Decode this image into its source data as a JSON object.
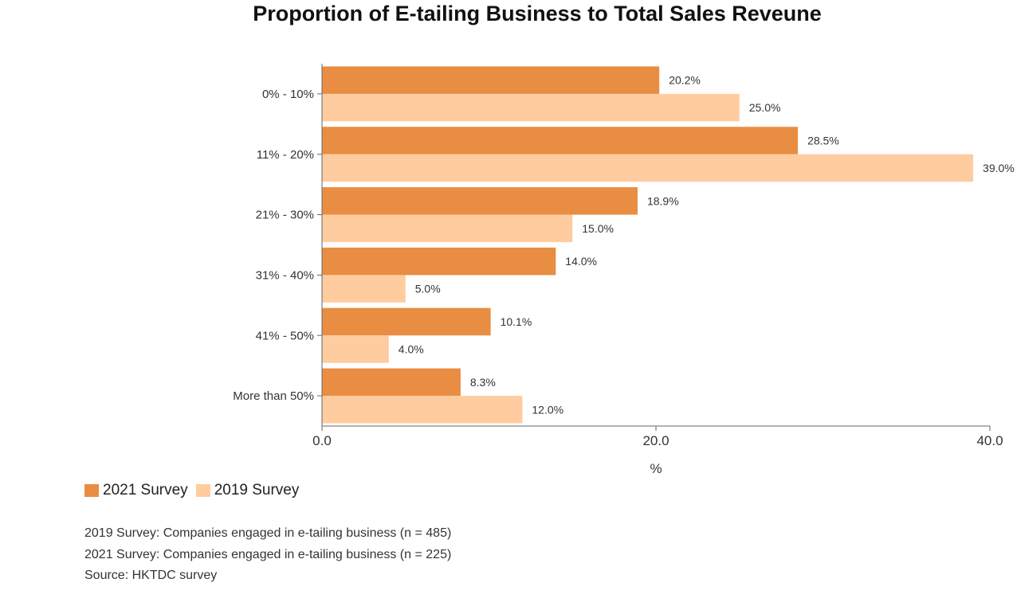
{
  "chart_data": {
    "type": "bar",
    "orientation": "horizontal",
    "title": "Proportion of E-tailing Business to Total Sales Reveune",
    "categories": [
      "0% - 10%",
      "11% - 20%",
      "21% - 30%",
      "31% - 40%",
      "41% - 50%",
      "More than 50%"
    ],
    "series": [
      {
        "name": "2021 Survey",
        "color": "#E88D42",
        "values": [
          20.2,
          28.5,
          18.9,
          14.0,
          10.1,
          8.3
        ]
      },
      {
        "name": "2019 Survey",
        "color": "#FFCC9F",
        "values": [
          25.0,
          39.0,
          15.0,
          5.0,
          4.0,
          12.0
        ]
      }
    ],
    "value_labels": [
      [
        "20.2%",
        "28.5%",
        "18.9%",
        "14.0%",
        "10.1%",
        "8.3%"
      ],
      [
        "25.0%",
        "39.0%",
        "15.0%",
        "5.0%",
        "4.0%",
        "12.0%"
      ]
    ],
    "xlabel": "%",
    "ylabel": "",
    "xlim": [
      0,
      40
    ],
    "xticks": [
      0,
      20,
      40
    ],
    "xtick_labels": [
      "0.0",
      "20.0",
      "40.0"
    ],
    "grid": false,
    "legend_position": "bottom-left"
  },
  "notes": [
    "2019 Survey: Companies engaged in e-tailing business (n = 485)",
    "2021 Survey: Companies engaged in e-tailing business (n = 225)",
    "Source: HKTDC survey"
  ]
}
